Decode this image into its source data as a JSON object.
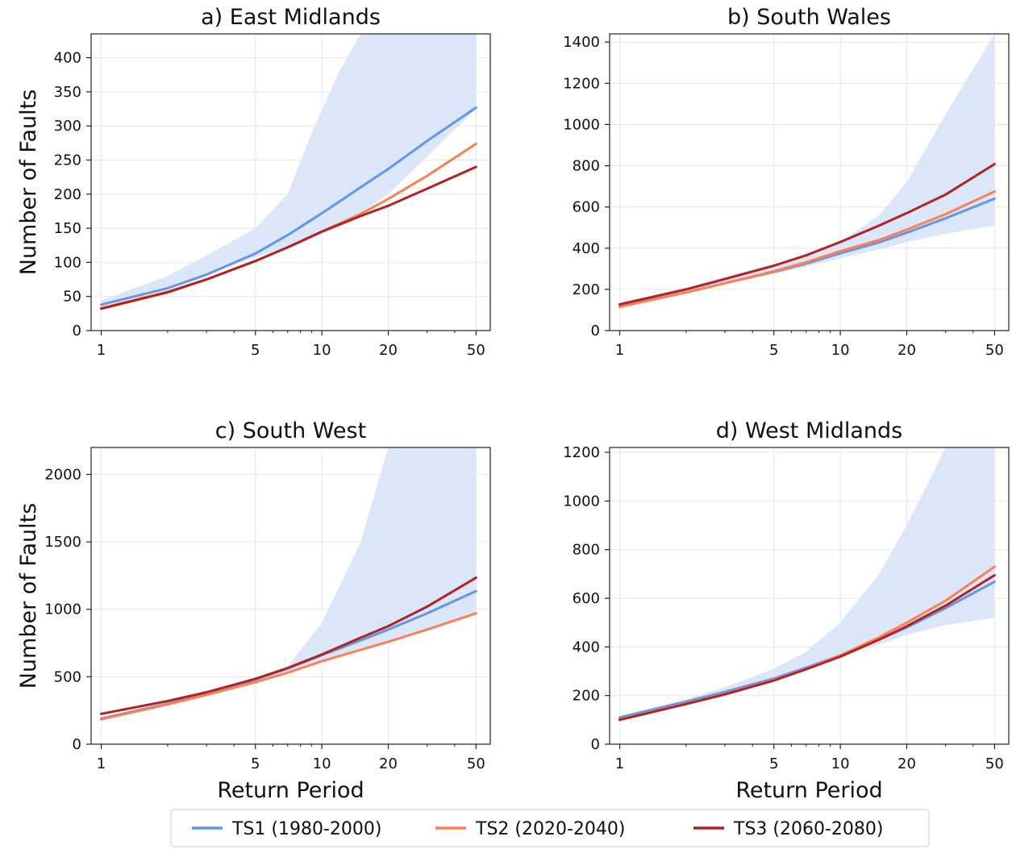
{
  "chart_data": [
    {
      "type": "line",
      "title": "a) East Midlands",
      "xlabel": "",
      "ylabel": "Number of Faults",
      "xscale": "log",
      "xlim": [
        0.9,
        58
      ],
      "ylim": [
        0,
        435
      ],
      "xticks": [
        1,
        5,
        10,
        20,
        50
      ],
      "yticks": [
        0,
        50,
        100,
        150,
        200,
        250,
        300,
        350,
        400
      ],
      "grid": true,
      "band": {
        "x": [
          1,
          2,
          3,
          5,
          7,
          9,
          12,
          15,
          20,
          50
        ],
        "lower": [
          36,
          63,
          82,
          108,
          120,
          135,
          155,
          172,
          200,
          325
        ],
        "upper": [
          44,
          80,
          110,
          150,
          200,
          290,
          380,
          435,
          435,
          435
        ]
      },
      "series": [
        {
          "name": "TS1 (1980-2000)",
          "color": "#6495ED",
          "x": [
            1,
            2,
            3,
            5,
            7,
            10,
            15,
            20,
            30,
            50
          ],
          "values": [
            38,
            62,
            82,
            113,
            140,
            172,
            210,
            237,
            278,
            327
          ]
        },
        {
          "name": "TS2 (2020-2040)",
          "color": "#FF7F50",
          "x": [
            1,
            2,
            3,
            5,
            7,
            10,
            15,
            20,
            30,
            50
          ],
          "values": [
            33,
            57,
            75,
            102,
            122,
            145,
            171,
            193,
            227,
            274
          ]
        },
        {
          "name": "TS3 (2060-2080)",
          "color": "#B22222",
          "x": [
            1,
            2,
            3,
            5,
            7,
            10,
            15,
            20,
            30,
            50
          ],
          "values": [
            32,
            56,
            75,
            102,
            122,
            145,
            168,
            183,
            208,
            240
          ]
        }
      ]
    },
    {
      "type": "line",
      "title": "b) South Wales",
      "xlabel": "",
      "ylabel": "",
      "xscale": "log",
      "xlim": [
        0.9,
        58
      ],
      "ylim": [
        0,
        1440
      ],
      "xticks": [
        1,
        5,
        10,
        20,
        50
      ],
      "yticks": [
        0,
        200,
        400,
        600,
        800,
        1000,
        1200,
        1400
      ],
      "grid": true,
      "band": {
        "x": [
          1,
          2,
          3,
          5,
          7,
          10,
          15,
          20,
          30,
          50
        ],
        "lower": [
          110,
          180,
          225,
          275,
          310,
          350,
          395,
          430,
          470,
          510
        ],
        "upper": [
          125,
          210,
          262,
          320,
          360,
          430,
          560,
          720,
          1050,
          1440
        ]
      },
      "series": [
        {
          "name": "TS1 (1980-2000)",
          "color": "#6495ED",
          "x": [
            1,
            2,
            3,
            5,
            7,
            10,
            15,
            20,
            30,
            50
          ],
          "values": [
            118,
            185,
            230,
            285,
            325,
            375,
            428,
            475,
            545,
            640
          ]
        },
        {
          "name": "TS2 (2020-2040)",
          "color": "#FF7F50",
          "x": [
            1,
            2,
            3,
            5,
            7,
            10,
            15,
            20,
            30,
            50
          ],
          "values": [
            115,
            185,
            230,
            288,
            332,
            385,
            440,
            490,
            565,
            675
          ]
        },
        {
          "name": "TS3 (2060-2080)",
          "color": "#B22222",
          "x": [
            1,
            2,
            3,
            5,
            7,
            10,
            15,
            20,
            30,
            50
          ],
          "values": [
            127,
            200,
            250,
            315,
            365,
            430,
            510,
            570,
            660,
            808
          ]
        }
      ]
    },
    {
      "type": "line",
      "title": "c) South West",
      "xlabel": "Return Period",
      "ylabel": "Number of Faults",
      "xscale": "log",
      "xlim": [
        0.9,
        58
      ],
      "ylim": [
        0,
        2200
      ],
      "xticks": [
        1,
        5,
        10,
        20,
        50
      ],
      "yticks": [
        0,
        500,
        1000,
        1500,
        2000
      ],
      "grid": true,
      "band": {
        "x": [
          1,
          2,
          3,
          5,
          7,
          10,
          15,
          20,
          30,
          50
        ],
        "lower": [
          180,
          290,
          360,
          460,
          530,
          615,
          700,
          760,
          850,
          960
        ],
        "upper": [
          200,
          310,
          385,
          495,
          575,
          900,
          1500,
          2200,
          2200,
          2200
        ]
      },
      "series": [
        {
          "name": "TS1 (1980-2000)",
          "color": "#6495ED",
          "x": [
            1,
            2,
            3,
            5,
            7,
            10,
            15,
            20,
            30,
            50
          ],
          "values": [
            190,
            300,
            375,
            480,
            560,
            660,
            770,
            850,
            970,
            1135
          ]
        },
        {
          "name": "TS2 (2020-2040)",
          "color": "#FF7F50",
          "x": [
            1,
            2,
            3,
            5,
            7,
            10,
            15,
            20,
            30,
            50
          ],
          "values": [
            185,
            295,
            365,
            460,
            530,
            615,
            700,
            760,
            850,
            970
          ]
        },
        {
          "name": "TS3 (2060-2080)",
          "color": "#B22222",
          "x": [
            1,
            2,
            3,
            5,
            7,
            10,
            15,
            20,
            30,
            50
          ],
          "values": [
            225,
            320,
            385,
            485,
            565,
            665,
            790,
            875,
            1020,
            1235
          ]
        }
      ]
    },
    {
      "type": "line",
      "title": "d) West Midlands",
      "xlabel": "Return Period",
      "ylabel": "",
      "xscale": "log",
      "xlim": [
        0.9,
        58
      ],
      "ylim": [
        0,
        1220
      ],
      "xticks": [
        1,
        5,
        10,
        20,
        50
      ],
      "yticks": [
        0,
        200,
        400,
        600,
        800,
        1000,
        1200
      ],
      "grid": true,
      "band": {
        "x": [
          1,
          2,
          3,
          5,
          7,
          10,
          15,
          20,
          30,
          50
        ],
        "lower": [
          100,
          170,
          210,
          265,
          310,
          360,
          410,
          450,
          490,
          520
        ],
        "upper": [
          115,
          185,
          235,
          310,
          380,
          500,
          700,
          900,
          1220,
          1220
        ]
      },
      "series": [
        {
          "name": "TS1 (1980-2000)",
          "color": "#6495ED",
          "x": [
            1,
            2,
            3,
            5,
            7,
            10,
            15,
            20,
            30,
            50
          ],
          "values": [
            110,
            175,
            215,
            270,
            315,
            365,
            430,
            480,
            560,
            668
          ]
        },
        {
          "name": "TS2 (2020-2040)",
          "color": "#FF7F50",
          "x": [
            1,
            2,
            3,
            5,
            7,
            10,
            15,
            20,
            30,
            50
          ],
          "values": [
            102,
            167,
            207,
            265,
            310,
            365,
            440,
            500,
            590,
            730
          ]
        },
        {
          "name": "TS3 (2060-2080)",
          "color": "#B22222",
          "x": [
            1,
            2,
            3,
            5,
            7,
            10,
            15,
            20,
            30,
            50
          ],
          "values": [
            100,
            165,
            205,
            262,
            308,
            360,
            430,
            485,
            570,
            695
          ]
        }
      ]
    }
  ],
  "legend": {
    "position": "bottom-center",
    "items": [
      {
        "label": "TS1 (1980-2000)",
        "color": "#6495ED"
      },
      {
        "label": "TS2 (2020-2040)",
        "color": "#FF7F50"
      },
      {
        "label": "TS3 (2060-2080)",
        "color": "#B22222"
      }
    ]
  },
  "band_color": "#dbe6f8"
}
